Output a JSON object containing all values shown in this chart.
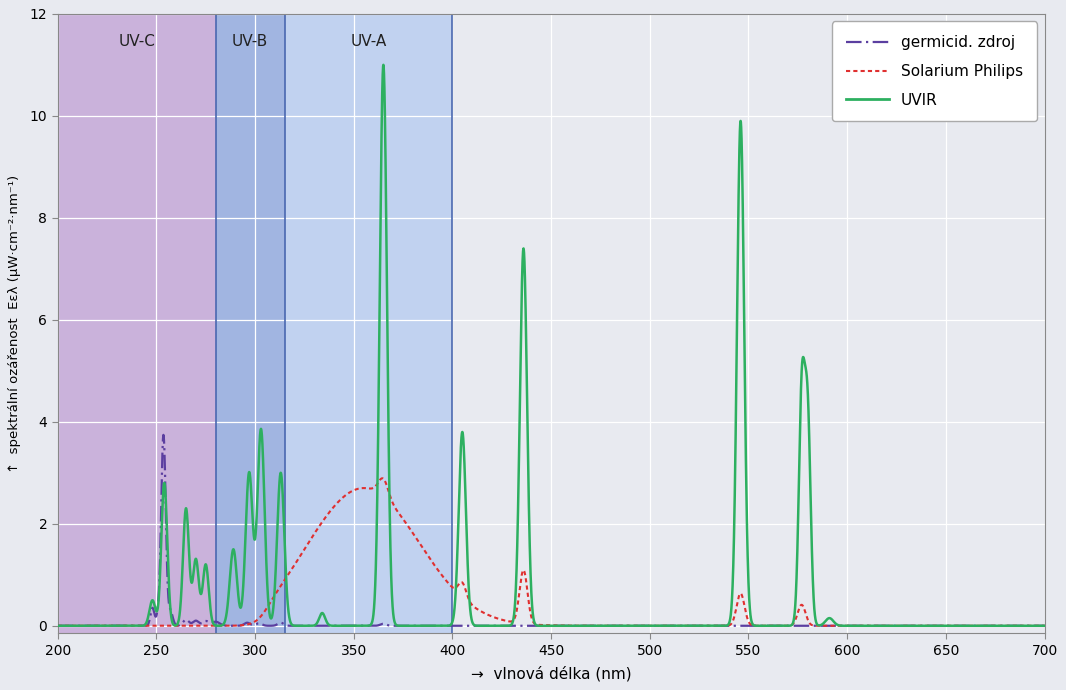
{
  "xlim": [
    200,
    700
  ],
  "ylim": [
    -0.15,
    12
  ],
  "yticks": [
    0,
    2,
    4,
    6,
    8,
    10,
    12
  ],
  "xticks": [
    200,
    250,
    300,
    350,
    400,
    450,
    500,
    550,
    600,
    650,
    700
  ],
  "xlabel": "vlnová délka (nm)",
  "ylabel_top": "spektrální ozářenost  Eελ (μW·cm⁻²·nm⁻¹)",
  "title": "",
  "uvc_region": [
    200,
    280
  ],
  "uvb_region": [
    280,
    315
  ],
  "uva_region": [
    315,
    400
  ],
  "uvc_color": "#c0a0d5",
  "uvb_color": "#9ab0e0",
  "uva_color": "#b8ccf0",
  "bg_color": "#e8eaf0",
  "plot_bg_color": "#eceef2",
  "germicid_color": "#5b3fa0",
  "solarium_color": "#e03030",
  "uvir_color": "#2db060",
  "uvc_label": "UV-C",
  "uvb_label": "UV-B",
  "uva_label": "UV-A",
  "legend_labels": [
    "germicid. zdroj",
    "Solarium Philips",
    "UVIR"
  ]
}
